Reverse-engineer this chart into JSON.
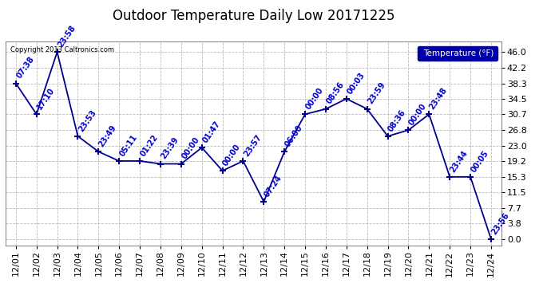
{
  "title": "Outdoor Temperature Daily Low 20171225",
  "copyright": "Copyright 2013 Caltronics.com",
  "legend_label": "Temperature (°F)",
  "x_labels": [
    "12/01",
    "12/02",
    "12/03",
    "12/04",
    "12/05",
    "12/06",
    "12/07",
    "12/08",
    "12/09",
    "12/10",
    "12/11",
    "12/12",
    "12/13",
    "12/14",
    "12/15",
    "12/16",
    "12/17",
    "12/18",
    "12/19",
    "12/20",
    "12/21",
    "12/22",
    "12/23",
    "12/24"
  ],
  "y_values": [
    38.3,
    30.7,
    46.0,
    25.3,
    21.5,
    19.2,
    19.2,
    18.5,
    18.5,
    22.5,
    16.8,
    19.2,
    9.2,
    21.5,
    30.7,
    32.0,
    34.5,
    32.0,
    25.3,
    26.8,
    30.7,
    15.3,
    15.3,
    0.0
  ],
  "point_labels": [
    "07:38",
    "17:10",
    "23:58",
    "23:53",
    "23:49",
    "05:11",
    "01:22",
    "23:39",
    "00:00",
    "01:47",
    "00:00",
    "23:57",
    "07:24",
    "06:00",
    "00:00",
    "08:56",
    "00:03",
    "23:59",
    "08:36",
    "00:00",
    "23:48",
    "23:44",
    "00:05",
    "23:56"
  ],
  "y_ticks": [
    0.0,
    3.8,
    7.7,
    11.5,
    15.3,
    19.2,
    23.0,
    26.8,
    30.7,
    34.5,
    38.3,
    42.2,
    46.0
  ],
  "ylim": [
    -1.5,
    48.5
  ],
  "line_color": "#00008B",
  "marker_color": "#00008B",
  "label_color": "#0000CC",
  "bg_color": "#FFFFFF",
  "plot_bg": "#FFFFFF",
  "grid_color": "#BBBBBB",
  "legend_bg": "#0000AA",
  "legend_fg": "#FFFFFF",
  "title_fontsize": 12,
  "tick_fontsize": 8,
  "label_fontsize": 7
}
